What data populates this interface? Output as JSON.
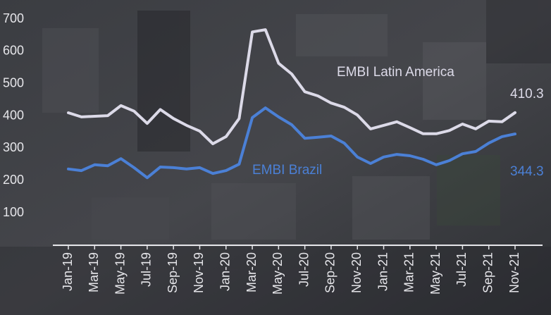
{
  "chart_data": {
    "type": "line",
    "categories": [
      "Jan-19",
      null,
      "Mar-19",
      null,
      "May-19",
      null,
      "Jul-19",
      null,
      "Sep-19",
      null,
      "Nov-19",
      null,
      "Jan-20",
      null,
      "Mar-20",
      null,
      "May-20",
      null,
      "Jul-20",
      null,
      "Sep-20",
      null,
      "Nov-20",
      null,
      "Jan-21",
      null,
      "Mar-21",
      null,
      "May-21",
      null,
      "Jul-21",
      null,
      "Sep-21",
      null,
      "Nov-21"
    ],
    "series": [
      {
        "name": "EMBI Latin America",
        "color": "#dcdae8",
        "values": [
          410,
          397,
          399,
          401,
          432,
          415,
          377,
          420,
          392,
          371,
          353,
          314,
          336,
          392,
          660,
          667,
          563,
          530,
          475,
          462,
          440,
          427,
          403,
          360,
          371,
          382,
          364,
          345,
          345,
          355,
          375,
          360,
          384,
          382,
          410.3
        ]
      },
      {
        "name": "EMBI Brazil",
        "color": "#4b80d6",
        "values": [
          236,
          231,
          249,
          246,
          268,
          240,
          209,
          242,
          240,
          236,
          240,
          222,
          231,
          251,
          395,
          425,
          397,
          373,
          331,
          334,
          338,
          316,
          273,
          253,
          273,
          281,
          277,
          266,
          249,
          262,
          283,
          290,
          316,
          336,
          344.3
        ]
      }
    ],
    "ylim": [
      0,
      700
    ],
    "yticks": [
      100,
      200,
      300,
      400,
      500,
      600,
      700
    ]
  }
}
